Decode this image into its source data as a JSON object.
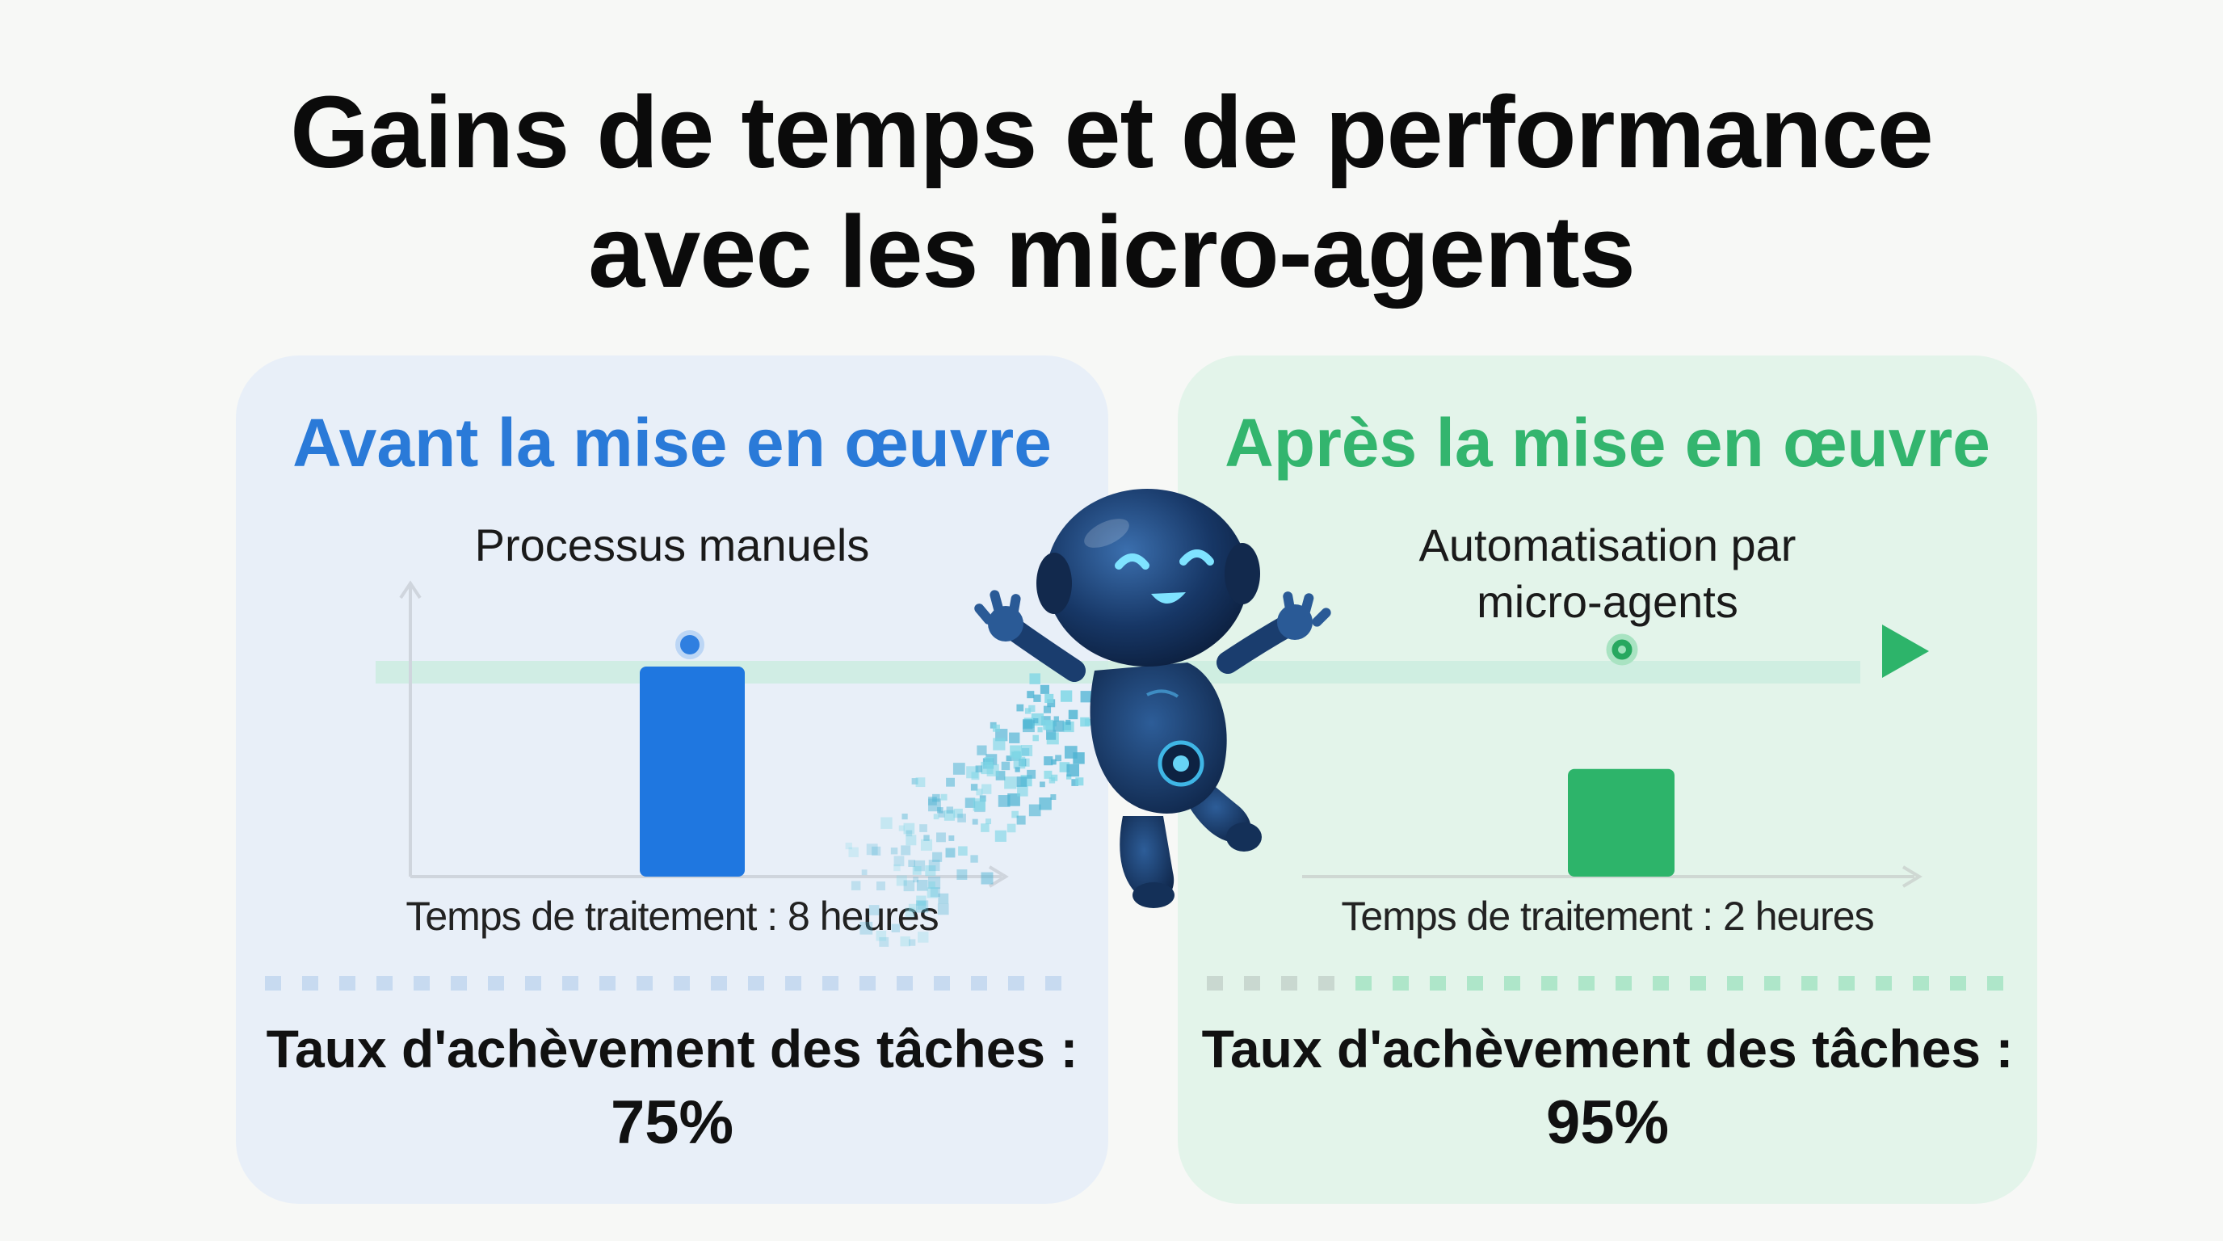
{
  "title": {
    "line1": "Gains de temps et de performance",
    "line2": "avec les micro-agents"
  },
  "before": {
    "heading": "Avant la mise en œuvre",
    "subtitle": "Processus manuels",
    "time_caption": "Temps de traitement : 8 heures",
    "rate_label": "Taux d'achèvement des tâches :",
    "rate_value": "75%",
    "hours": 8
  },
  "after": {
    "heading": "Après la mise en œuvre",
    "subtitle_line1": "Automatisation par",
    "subtitle_line2": "micro-agents",
    "time_caption": "Temps de traitement : 2 heures",
    "rate_label": "Taux d'achèvement des tâches :",
    "rate_value": "95%",
    "hours": 2
  },
  "colors": {
    "blue": "#1f77e0",
    "green": "#2db46a",
    "robot": "#16345e"
  },
  "icons": {
    "mascot": "robot-mascot-icon"
  }
}
